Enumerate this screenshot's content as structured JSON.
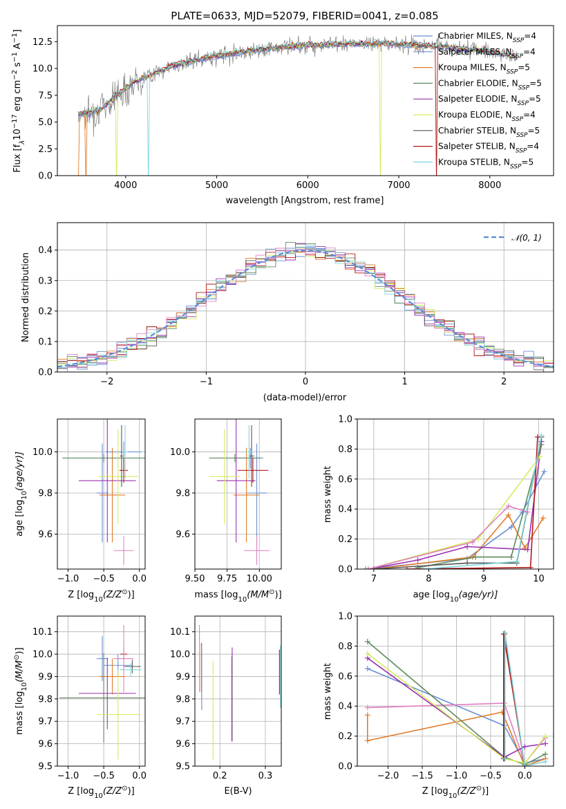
{
  "figure": {
    "title": "PLATE=0633, MJD=52079, FIBERID=0041, z=0.085"
  },
  "colors": {
    "Chabrier MILES": "#6a8fd4",
    "Salpeter MILES": "#6a8fd4",
    "Kroupa MILES": "#e07b28",
    "Chabrier ELODIE": "#5c8a5c",
    "Salpeter ELODIE": "#9b30b0",
    "Kroupa ELODIE": "#d4ec5c",
    "Chabrier STELIB": "#555555",
    "Salpeter STELIB": "#b01818",
    "Kroupa STELIB": "#7fd8de",
    "data": "#808080",
    "pink": "#e07fc0",
    "normal": "#5a8ad8",
    "grid": "#b0b0b0"
  },
  "chart_data": [
    {
      "type": "line",
      "title": "PLATE=0633, MJD=52079, FIBERID=0041, z=0.085",
      "xlabel": "wavelength [Angstrom, rest frame]",
      "ylabel_parts": [
        "Flux [f",
        "λ",
        "10",
        "−17",
        " erg cm",
        "−2",
        " s",
        "−1",
        " A",
        "−1",
        "]"
      ],
      "xlim": [
        3250,
        8700
      ],
      "ylim": [
        0,
        14
      ],
      "xticks": [
        4000,
        5000,
        6000,
        7000,
        8000
      ],
      "yticks": [
        "0.0",
        "2.5",
        "5.0",
        "7.5",
        "10.0",
        "12.5"
      ],
      "grid": false,
      "legend_position": "top-right",
      "legend": [
        {
          "label": "Chabrier MILES, N",
          "sub": "SSP",
          "suffix": "=4"
        },
        {
          "label": "Salpeter MILES, N",
          "sub": "SSP",
          "suffix": "=4"
        },
        {
          "label": "Kroupa MILES, N",
          "sub": "SSP",
          "suffix": "=5"
        },
        {
          "label": "Chabrier ELODIE, N",
          "sub": "SSP",
          "suffix": "=5"
        },
        {
          "label": "Salpeter ELODIE, N",
          "sub": "SSP",
          "suffix": "=5"
        },
        {
          "label": "Kroupa ELODIE, N",
          "sub": "SSP",
          "suffix": "=4"
        },
        {
          "label": "Chabrier STELIB, N",
          "sub": "SSP",
          "suffix": "=5"
        },
        {
          "label": "Salpeter STELIB, N",
          "sub": "SSP",
          "suffix": "=4"
        },
        {
          "label": "Kroupa STELIB, N",
          "sub": "SSP",
          "suffix": "=5"
        }
      ],
      "spectrum_envelope": {
        "x": [
          3500,
          3700,
          3900,
          4100,
          4300,
          4500,
          4800,
          5000,
          5500,
          6000,
          6500,
          7000,
          7500,
          8000,
          8300
        ],
        "y": [
          5.8,
          6.0,
          7.5,
          8.8,
          9.5,
          10.2,
          10.8,
          11.2,
          11.8,
          12.2,
          12.3,
          12.3,
          12.0,
          11.6,
          11.0
        ]
      },
      "model_dropouts": [
        {
          "model": "Kroupa MILES",
          "x": [
            3480,
            3560,
            7420
          ]
        },
        {
          "model": "Kroupa ELODIE",
          "x": [
            3900,
            6800
          ]
        },
        {
          "model": "Kroupa STELIB",
          "x": [
            4250
          ]
        },
        {
          "model": "Salpeter STELIB",
          "x": [
            7420
          ]
        }
      ]
    },
    {
      "type": "histogram",
      "xlabel": "(data-model)/error",
      "ylabel": "Normed distribution",
      "xlim": [
        -2.5,
        2.5
      ],
      "ylim": [
        0,
        0.49
      ],
      "xticks": [
        "−2",
        "−1",
        "0",
        "1",
        "2"
      ],
      "yticks": [
        "0.0",
        "0.1",
        "0.2",
        "0.3",
        "0.4"
      ],
      "grid": true,
      "legend_position": "top-right",
      "normal_label": "𝒩(0, 1)",
      "bin_width": 0.1,
      "bin_start": -2.5
    },
    {
      "type": "errorbar",
      "xlabel_parts": [
        "Z [log",
        "10",
        "(Z/Z",
        "⊙",
        ")]"
      ],
      "ylabel_parts": [
        "age  [log",
        "10",
        "(age/yr)]"
      ],
      "xlim": [
        -1.15,
        0.08
      ],
      "ylim": [
        9.43,
        10.16
      ],
      "xticks": [
        "−1.0",
        "−0.5",
        "0.0"
      ],
      "yticks": [
        "9.6",
        "9.8",
        "10.0"
      ],
      "grid": true,
      "points": [
        {
          "model": "Chabrier MILES",
          "x": -0.52,
          "xerr": 0.08,
          "y": 9.8,
          "yerr": 0.24
        },
        {
          "model": "Salpeter MILES",
          "x": -0.22,
          "xerr": 0.25,
          "y": 10.0,
          "yerr": 0.05
        },
        {
          "model": "Kroupa MILES",
          "x": -0.38,
          "xerr": 0.18,
          "y": 9.79,
          "yerr": 0.23
        },
        {
          "model": "Chabrier ELODIE",
          "x": -0.5,
          "xerr": 0.58,
          "y": 9.97,
          "yerr": 0.02
        },
        {
          "model": "Salpeter ELODIE",
          "x": -0.45,
          "xerr": 0.4,
          "y": 9.86,
          "yerr": 0.3
        },
        {
          "model": "Kroupa ELODIE",
          "x": -0.3,
          "xerr": 0.28,
          "y": 9.88,
          "yerr": 0.23
        },
        {
          "model": "Chabrier STELIB",
          "x": -0.25,
          "xerr": 0.02,
          "y": 9.98,
          "yerr": 0.15
        },
        {
          "model": "Salpeter STELIB",
          "x": -0.22,
          "xerr": 0.06,
          "y": 9.91,
          "yerr": 0.06
        },
        {
          "model": "Kroupa STELIB",
          "x": -0.2,
          "xerr": 0.04,
          "y": 10.0,
          "yerr": 0.13
        },
        {
          "model": "pink",
          "x": -0.22,
          "xerr": 0.14,
          "y": 9.52,
          "yerr": 0.07
        }
      ]
    },
    {
      "type": "errorbar",
      "xlabel_parts": [
        "mass [log",
        "10",
        "(M/M",
        "⊙",
        ")]"
      ],
      "xlim": [
        9.5,
        10.17
      ],
      "ylim": [
        9.43,
        10.16
      ],
      "xticks": [
        "9.50",
        "9.75",
        "10.00"
      ],
      "yticks": [
        "9.6",
        "9.8",
        "10.0"
      ],
      "grid": true,
      "points": [
        {
          "model": "Chabrier MILES",
          "x": 9.98,
          "xerr": 0.08,
          "y": 9.8,
          "yerr": 0.24
        },
        {
          "model": "Salpeter MILES",
          "x": 9.93,
          "xerr": 0.1,
          "y": 9.97,
          "yerr": 0.05
        },
        {
          "model": "Kroupa MILES",
          "x": 9.9,
          "xerr": 0.1,
          "y": 9.79,
          "yerr": 0.23
        },
        {
          "model": "Chabrier ELODIE",
          "x": 9.81,
          "xerr": 0.2,
          "y": 9.97,
          "yerr": 0.02
        },
        {
          "model": "Salpeter ELODIE",
          "x": 9.82,
          "xerr": 0.15,
          "y": 9.86,
          "yerr": 0.3
        },
        {
          "model": "Kroupa ELODIE",
          "x": 9.73,
          "xerr": 0.12,
          "y": 9.88,
          "yerr": 0.23
        },
        {
          "model": "Chabrier STELIB",
          "x": 9.94,
          "xerr": 0.02,
          "y": 9.98,
          "yerr": 0.15
        },
        {
          "model": "Salpeter STELIB",
          "x": 9.95,
          "xerr": 0.12,
          "y": 9.91,
          "yerr": 0.06
        },
        {
          "model": "Kroupa STELIB",
          "x": 9.92,
          "xerr": 0.04,
          "y": 10.0,
          "yerr": 0.13
        },
        {
          "model": "pink",
          "x": 9.98,
          "xerr": 0.1,
          "y": 9.52,
          "yerr": 0.07
        }
      ]
    },
    {
      "type": "line",
      "xlabel_parts": [
        "age  [log",
        "10",
        "(age/yr)]"
      ],
      "ylabel": "mass weight",
      "xlim": [
        6.7,
        10.27
      ],
      "ylim": [
        0,
        1
      ],
      "xticks": [
        "7",
        "8",
        "9",
        "10"
      ],
      "yticks": [
        "0.0",
        "0.2",
        "0.4",
        "0.6",
        "0.8",
        "1.0"
      ],
      "grid": true,
      "series": [
        {
          "model": "Chabrier MILES",
          "x": [
            6.85,
            8.7,
            9.5,
            9.7,
            10.1
          ],
          "y": [
            0.0,
            0.07,
            0.28,
            0.38,
            0.65
          ]
        },
        {
          "model": "Kroupa MILES",
          "x": [
            7.0,
            8.8,
            9.45,
            9.75,
            10.08
          ],
          "y": [
            0.0,
            0.08,
            0.36,
            0.14,
            0.34
          ]
        },
        {
          "model": "Salpeter ELODIE",
          "x": [
            6.9,
            7.8,
            8.7,
            9.8,
            10.05
          ],
          "y": [
            0.0,
            0.06,
            0.15,
            0.13,
            0.85
          ]
        },
        {
          "model": "Chabrier ELODIE",
          "x": [
            7.8,
            8.85,
            9.5,
            10.05
          ],
          "y": [
            0.01,
            0.08,
            0.08,
            0.83
          ]
        },
        {
          "model": "Kroupa ELODIE",
          "x": [
            6.9,
            8.9,
            10.02
          ],
          "y": [
            0.0,
            0.2,
            0.75
          ]
        },
        {
          "model": "Chabrier STELIB",
          "x": [
            7.0,
            8.7,
            9.6,
            10.05
          ],
          "y": [
            0.0,
            0.04,
            0.04,
            0.88
          ]
        },
        {
          "model": "Salpeter STELIB",
          "x": [
            7.6,
            9.85,
            9.98
          ],
          "y": [
            0.0,
            0.01,
            0.88
          ]
        },
        {
          "model": "Kroupa STELIB",
          "x": [
            7.9,
            9.6,
            10.05
          ],
          "y": [
            0.0,
            0.05,
            0.89
          ]
        },
        {
          "model": "pink",
          "x": [
            6.9,
            8.8,
            9.45,
            9.8
          ],
          "y": [
            0.0,
            0.18,
            0.42,
            0.38
          ]
        }
      ]
    },
    {
      "type": "errorbar",
      "xlabel_parts": [
        "Z [log",
        "10",
        "(Z/Z",
        "⊙",
        ")]"
      ],
      "ylabel_parts": [
        "mass [log",
        "10",
        "(M/M",
        "⊙",
        ")]"
      ],
      "xlim": [
        -1.15,
        0.08
      ],
      "ylim": [
        9.5,
        10.17
      ],
      "xticks": [
        "−1.0",
        "−0.5",
        "0.0"
      ],
      "yticks": [
        "9.5",
        "9.6",
        "9.7",
        "9.8",
        "9.9",
        "10.0",
        "10.1"
      ],
      "grid": true,
      "points": [
        {
          "model": "Chabrier MILES",
          "x": -0.52,
          "xerr": 0.08,
          "y": 9.98,
          "yerr": 0.1
        },
        {
          "model": "Salpeter MILES",
          "x": -0.3,
          "xerr": 0.2,
          "y": 9.95,
          "yerr": 0.05
        },
        {
          "model": "Kroupa MILES",
          "x": -0.38,
          "xerr": 0.18,
          "y": 9.9,
          "yerr": 0.08
        },
        {
          "model": "Chabrier ELODIE",
          "x": -0.5,
          "xerr": 0.62,
          "y": 9.805,
          "yerr": 0.2
        },
        {
          "model": "Salpeter ELODIE",
          "x": -0.45,
          "xerr": 0.4,
          "y": 9.825,
          "yerr": 0.16
        },
        {
          "model": "Kroupa ELODIE",
          "x": -0.3,
          "xerr": 0.3,
          "y": 9.73,
          "yerr": 0.2
        },
        {
          "model": "Chabrier STELIB",
          "x": -0.1,
          "xerr": 0.12,
          "y": 9.945,
          "yerr": 0.03
        },
        {
          "model": "Salpeter STELIB",
          "x": -0.22,
          "xerr": 0.05,
          "y": 10.0,
          "yerr": 0.03
        },
        {
          "model": "Kroupa STELIB",
          "x": -0.12,
          "xerr": 0.15,
          "y": 9.93,
          "yerr": 0.03
        },
        {
          "model": "pink",
          "x": -0.22,
          "xerr": 0.14,
          "y": 9.98,
          "yerr": 0.15
        }
      ]
    },
    {
      "type": "errorbar",
      "xlabel": "E(B-V)",
      "xlim": [
        0.145,
        0.335
      ],
      "ylim": [
        9.5,
        10.17
      ],
      "xticks": [
        "0.2",
        "0.3"
      ],
      "yticks": [
        "9.5",
        "9.6",
        "9.7",
        "9.8",
        "9.9",
        "10.0",
        "10.1"
      ],
      "grid": true,
      "points": [
        {
          "model": "pink",
          "x": 0.155,
          "y": 9.98,
          "yerr": 0.15
        },
        {
          "model": "Chabrier MILES",
          "x": 0.16,
          "y": 9.9,
          "yerr": 0.15
        },
        {
          "model": "Kroupa MILES",
          "x": 0.159,
          "y": 9.94,
          "yerr": 0.11
        },
        {
          "model": "Kroupa ELODIE",
          "x": 0.185,
          "y": 9.75,
          "yerr": 0.22
        },
        {
          "model": "Salpeter ELODIE",
          "x": 0.227,
          "y": 9.82,
          "yerr": 0.21
        },
        {
          "model": "Chabrier ELODIE",
          "x": 0.226,
          "y": 9.8,
          "yerr": 0.19
        },
        {
          "model": "Salpeter STELIB",
          "x": 0.331,
          "y": 9.92,
          "yerr": 0.1
        },
        {
          "model": "Kroupa STELIB",
          "x": 0.333,
          "y": 9.9,
          "yerr": 0.14
        }
      ]
    },
    {
      "type": "line",
      "xlabel_parts": [
        "Z [log",
        "10",
        "(Z/Z",
        "⊙",
        ")]"
      ],
      "ylabel": "mass weight",
      "xlim": [
        -2.45,
        0.42
      ],
      "ylim": [
        0,
        1
      ],
      "xticks": [
        "−2.0",
        "−1.5",
        "−1.0",
        "−0.5",
        "0.0"
      ],
      "yticks": [
        "0.0",
        "0.2",
        "0.4",
        "0.6",
        "0.8",
        "1.0"
      ],
      "grid": true,
      "series": [
        {
          "model": "Chabrier MILES",
          "x": [
            -2.3,
            -0.3,
            0.0,
            0.3
          ],
          "y": [
            0.65,
            0.27,
            0.02,
            0.05
          ]
        },
        {
          "model": "Kroupa MILES",
          "x": [
            -2.3,
            -2.3,
            -0.33,
            0.0,
            0.3
          ],
          "y": [
            0.34,
            0.17,
            0.36,
            0.0,
            0.05
          ]
        },
        {
          "model": "pink",
          "x": [
            -2.3,
            -0.3,
            0.0,
            0.3
          ],
          "y": [
            0.39,
            0.42,
            0.02,
            0.19
          ]
        },
        {
          "model": "Chabrier ELODIE",
          "x": [
            -2.3,
            -0.3,
            0.0,
            0.3
          ],
          "y": [
            0.83,
            0.06,
            0.01,
            0.08
          ]
        },
        {
          "model": "Salpeter ELODIE",
          "x": [
            -2.3,
            -0.3,
            0.0,
            0.3
          ],
          "y": [
            0.72,
            0.06,
            0.13,
            0.15
          ]
        },
        {
          "model": "Kroupa ELODIE",
          "x": [
            -2.3,
            -0.3,
            0.0,
            0.3
          ],
          "y": [
            0.75,
            0.05,
            0.02,
            0.2
          ]
        },
        {
          "model": "Chabrier STELIB",
          "x": [
            -0.3,
            -0.3,
            0.0
          ],
          "y": [
            0.05,
            0.88,
            0.0
          ]
        },
        {
          "model": "Salpeter STELIB",
          "x": [
            -0.31,
            -0.31,
            0.0
          ],
          "y": [
            0.05,
            0.88,
            0.0
          ]
        },
        {
          "model": "Kroupa STELIB",
          "x": [
            -0.29,
            -0.29,
            0.0,
            0.3
          ],
          "y": [
            0.05,
            0.89,
            0.0,
            0.03
          ]
        }
      ]
    }
  ]
}
